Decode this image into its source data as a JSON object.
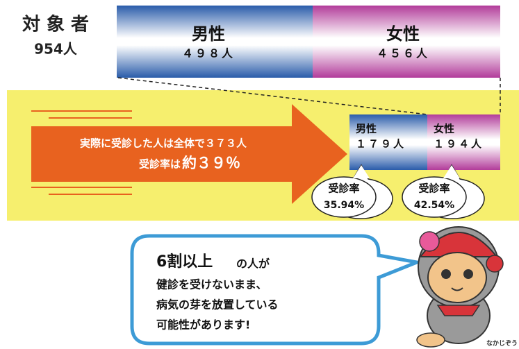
{
  "target": {
    "label": "対 象 者",
    "count": "954人"
  },
  "population": {
    "male": {
      "label": "男性",
      "count": "４９８人"
    },
    "female": {
      "label": "女性",
      "count": "４５６人"
    }
  },
  "arrow": {
    "line1": "実際に受診した人は全体で３７３人",
    "line2_prefix": "受診率は",
    "line2_value": "約３９％"
  },
  "examined": {
    "male": {
      "label": "男性",
      "count": "１７９人",
      "rate_label": "受診率",
      "rate": "35.94%"
    },
    "female": {
      "label": "女性",
      "count": "１９４人",
      "rate_label": "受診率",
      "rate": "42.54%"
    }
  },
  "message": {
    "highlight": "6割以上",
    "line1_rest": "の人が",
    "line2": "健診を受けないまま、",
    "line3": "病気の芽を放置している",
    "line4": "可能性があります!"
  },
  "mascot": {
    "name": "なかじぞう"
  }
}
